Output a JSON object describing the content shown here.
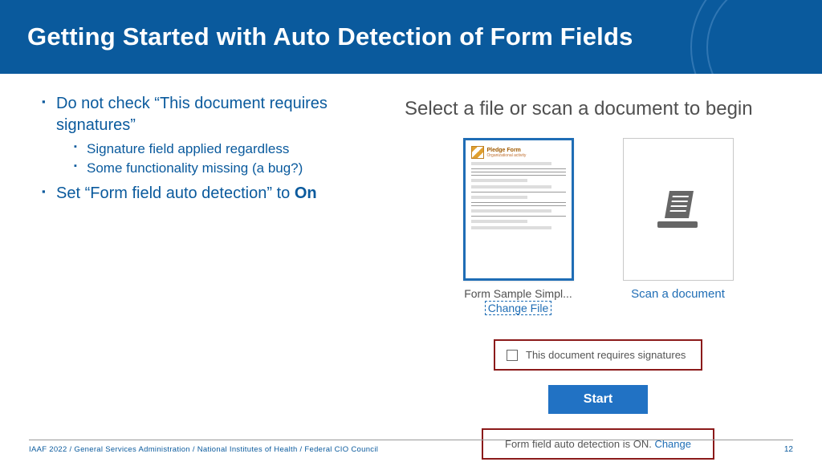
{
  "header": {
    "title": "Getting Started with Auto Detection of Form Fields"
  },
  "bullets": {
    "b1": "Do not check “This document requires signatures”",
    "s1": "Signature field applied regardless",
    "s2": "Some functionality missing (a bug?)",
    "b2_pre": "Set “Form field auto detection” to ",
    "b2_bold": "On"
  },
  "panel": {
    "title": "Select a file or scan a document to begin",
    "thumb_title": "Pledge Form",
    "card1_label": "Form Sample Simpl...",
    "change": "Change File",
    "card2_label": "Scan a document",
    "sig_label": "This document requires signatures",
    "start": "Start",
    "auto_text": "Form field auto detection is ON. ",
    "auto_change": "Change"
  },
  "footer": {
    "text": "IAAF 2022  /  General Services Administration  /  National Institutes of Health  /  Federal CIO Council",
    "page": "12"
  },
  "colors": {
    "header_bg": "#0a5a9d",
    "accent": "#1f6db5",
    "callout": "#8b1a1a"
  }
}
